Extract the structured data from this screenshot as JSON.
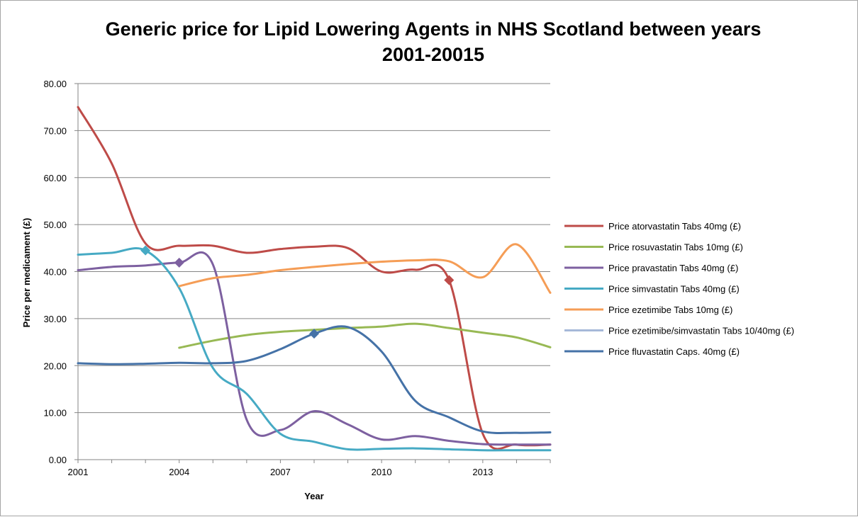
{
  "chart_data": {
    "type": "line",
    "title_line1": "Generic price for Lipid Lowering Agents in NHS Scotland between years",
    "title_line2": "2001-20015",
    "xlabel": "Year",
    "ylabel": "Price per medicament (£)",
    "x": [
      2001,
      2002,
      2003,
      2004,
      2005,
      2006,
      2007,
      2008,
      2009,
      2010,
      2011,
      2012,
      2013,
      2014,
      2015
    ],
    "x_tick_labels": [
      "2001",
      "2004",
      "2007",
      "2010",
      "2013"
    ],
    "x_tick_values": [
      2001,
      2004,
      2007,
      2010,
      2013
    ],
    "xlim": [
      2001,
      2015
    ],
    "ylim": [
      0,
      80
    ],
    "y_tick_labels": [
      "0.00",
      "10.00",
      "20.00",
      "30.00",
      "40.00",
      "50.00",
      "60.00",
      "70.00",
      "80.00"
    ],
    "y_tick_values": [
      0,
      10,
      20,
      30,
      40,
      50,
      60,
      70,
      80
    ],
    "grid": "horizontal",
    "legend_position": "right",
    "series": [
      {
        "name": "Price atorvastatin Tabs 40mg (£)",
        "color": "#be4b48",
        "values": [
          75.0,
          63.0,
          46.0,
          45.5,
          45.5,
          44.0,
          44.8,
          45.3,
          45.0,
          40.0,
          40.4,
          38.2,
          5.5,
          3.2,
          3.2
        ],
        "marker_index": 11
      },
      {
        "name": "Price rosuvastatin Tabs 10mg (£)",
        "color": "#98b954",
        "values": [
          null,
          null,
          null,
          23.8,
          25.3,
          26.5,
          27.2,
          27.6,
          28.0,
          28.3,
          28.9,
          28.0,
          27.0,
          26.0,
          23.9
        ],
        "marker_index": -1
      },
      {
        "name": "Price pravastatin Tabs 40mg (£)",
        "color": "#7d60a0",
        "values": [
          40.3,
          41.0,
          41.3,
          41.9,
          41.5,
          8.5,
          6.3,
          10.3,
          7.5,
          4.3,
          5.0,
          4.0,
          3.3,
          3.2,
          3.2
        ],
        "marker_index": 3
      },
      {
        "name": "Price simvastatin Tabs 40mg (£)",
        "color": "#46aac4",
        "values": [
          43.6,
          44.0,
          44.5,
          36.5,
          19.5,
          14.0,
          5.5,
          3.8,
          2.2,
          2.3,
          2.4,
          2.2,
          2.0,
          2.0,
          2.0
        ],
        "marker_index": 2
      },
      {
        "name": "Price ezetimibe Tabs 10mg (£)",
        "color": "#f59d56",
        "values": [
          null,
          null,
          null,
          36.9,
          38.6,
          39.3,
          40.3,
          41.0,
          41.6,
          42.1,
          42.4,
          42.2,
          38.8,
          45.8,
          35.5
        ],
        "marker_index": -1
      },
      {
        "name": "Price ezetimibe/simvastatin Tabs 10/40mg (£)",
        "color": "#a6b9d9",
        "values": [
          null,
          null,
          null,
          null,
          null,
          null,
          null,
          null,
          null,
          null,
          null,
          null,
          null,
          null,
          null
        ],
        "marker_index": -1
      },
      {
        "name": "Price fluvastatin Caps. 40mg (£)",
        "color": "#4572a7",
        "values": [
          20.5,
          20.3,
          20.4,
          20.6,
          20.5,
          21.0,
          23.5,
          26.8,
          28.2,
          23.0,
          12.5,
          9.0,
          6.0,
          5.7,
          5.8
        ],
        "marker_index": 7
      }
    ]
  }
}
